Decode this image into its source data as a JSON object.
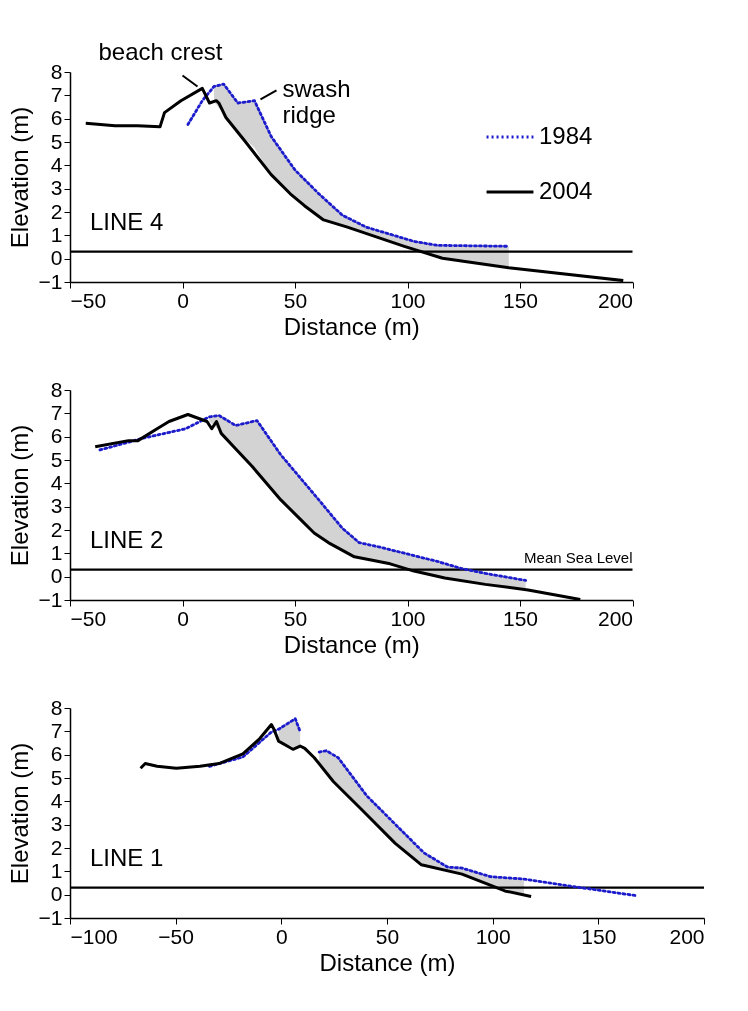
{
  "chart_data": [
    {
      "type": "line",
      "xlabel": "Distance (m)",
      "ylabel": "Elevation (m)",
      "xlim": [
        -50,
        200
      ],
      "ylim": [
        -1,
        8
      ],
      "xticks": [
        -50,
        0,
        50,
        100,
        150,
        200
      ],
      "yticks": [
        -1,
        0,
        1,
        2,
        3,
        4,
        5,
        6,
        7,
        8
      ],
      "legend": "top right",
      "annotations": [
        {
          "text": "beach crest",
          "x": 8,
          "y": 7.25
        },
        {
          "text": "swash ridge",
          "x": 32,
          "y": 6.7
        },
        "LINE 4"
      ],
      "ref_lines": [
        {
          "axis": "y",
          "value": 0.3,
          "color": "#000000"
        }
      ],
      "series": [
        {
          "name": "1984",
          "color": "#1c1ccc",
          "line_style": "dotted",
          "x": [
            2.4,
            8.8,
            14,
            18.3,
            24.6,
            32,
            39.4,
            50,
            60.6,
            71.1,
            81.7,
            102.9,
            113.4,
            145
          ],
          "values": [
            5.75,
            6.77,
            7.38,
            7.48,
            6.67,
            6.77,
            5.24,
            3.8,
            2.78,
            1.86,
            1.35,
            0.74,
            0.57,
            0.53
          ],
          "upper": [
            null,
            null,
            7.38,
            7.48,
            6.67,
            6.77,
            5.24,
            3.8,
            2.78,
            1.86,
            1.35,
            0.74,
            0.57,
            0.53
          ],
          "lower": [
            null,
            null,
            6.73,
            6.2,
            5.4,
            4.75,
            3.6,
            2.6,
            1.8,
            1.4,
            1.1,
            0.45,
            0.1,
            -0.39
          ]
        },
        {
          "name": "2004",
          "color": "#000000",
          "line_style": "solid",
          "x": [
            -43,
            -30,
            -20,
            -10,
            -8,
            -0.7,
            8.8,
            12,
            15,
            16.2,
            19.3,
            27.8,
            39.4,
            47.9,
            54.2,
            62.7,
            73.3,
            98.6,
            115.5,
            145,
            195.9
          ],
          "values": [
            5.8,
            5.7,
            5.7,
            5.65,
            6.26,
            6.77,
            7.3,
            6.67,
            6.77,
            6.67,
            6.05,
            5.03,
            3.6,
            2.78,
            2.27,
            1.66,
            1.35,
            0.53,
            0.02,
            -0.39,
            -0.94
          ]
        }
      ]
    },
    {
      "type": "line",
      "xlabel": "Distance (m)",
      "ylabel": "Elevation (m)",
      "xlim": [
        -50,
        200
      ],
      "ylim": [
        -1,
        8
      ],
      "xticks": [
        -50,
        0,
        50,
        100,
        150,
        200
      ],
      "yticks": [
        -1,
        0,
        1,
        2,
        3,
        4,
        5,
        6,
        7,
        8
      ],
      "annotations": [
        "LINE 2"
      ],
      "ref_lines": [
        {
          "axis": "y",
          "value": 0.3,
          "label": "Mean Sea Level",
          "color": "#000000"
        }
      ],
      "series": [
        {
          "name": "1984",
          "color": "#1c1ccc",
          "line_style": "dotted",
          "x": [
            -36.7,
            -17.7,
            1.4,
            11.9,
            16.2,
            23.6,
            33.1,
            43.7,
            60.6,
            71.1,
            78.5,
            88,
            113.4,
            124,
            134.6,
            152.5
          ],
          "values": [
            5.43,
            5.93,
            6.34,
            6.85,
            6.91,
            6.48,
            6.69,
            5.22,
            3.29,
            2.07,
            1.46,
            1.26,
            0.65,
            0.35,
            0.14,
            -0.16
          ],
          "upper": [
            null,
            null,
            null,
            6.85,
            6.91,
            6.48,
            6.69,
            5.22,
            3.29,
            2.07,
            1.46,
            1.26,
            0.65,
            0.35,
            0.14,
            -0.16
          ],
          "lower": [
            null,
            null,
            null,
            6.65,
            6.3,
            5.6,
            4.5,
            3.29,
            1.75,
            1.15,
            0.82,
            0.6,
            0.0,
            -0.17,
            -0.33,
            -0.57
          ]
        },
        {
          "name": "2004",
          "color": "#000000",
          "line_style": "solid",
          "x": [
            -38.8,
            -24,
            -19.8,
            -11.3,
            -6,
            2.4,
            10.9,
            13,
            15.1,
            17.2,
            31,
            43.7,
            53.2,
            58.5,
            64.8,
            76.4,
            92.3,
            102.9,
            116.6,
            134.6,
            153.6,
            176.8
          ],
          "values": [
            5.57,
            5.83,
            5.83,
            6.34,
            6.65,
            6.95,
            6.65,
            6.34,
            6.65,
            6.14,
            4.72,
            3.29,
            2.38,
            1.87,
            1.46,
            0.85,
            0.55,
            0.24,
            -0.06,
            -0.33,
            -0.57,
            -0.98
          ]
        }
      ]
    },
    {
      "type": "line",
      "xlabel": "Distance (m)",
      "ylabel": "Elevation (m)",
      "xlim": [
        -100,
        200
      ],
      "ylim": [
        -1,
        8
      ],
      "xticks": [
        -100,
        -50,
        0,
        50,
        100,
        150,
        200
      ],
      "yticks": [
        -1,
        0,
        1,
        2,
        3,
        4,
        5,
        6,
        7,
        8
      ],
      "annotations": [
        "LINE 1"
      ],
      "ref_lines": [
        {
          "axis": "y",
          "value": 0.3,
          "color": "#000000"
        }
      ],
      "series": [
        {
          "name": "1984",
          "color": "#1c1ccc",
          "line_style": "dotted",
          "x": [
            -34,
            -18.2,
            -4.7,
            -1.3,
            6.6,
            8.9,
            13,
            17.9,
            21.3,
            26.9,
            40.4,
            56.2,
            67.5,
            78.7,
            85.5,
            99,
            114.8,
            139.6,
            167.7
          ],
          "values": [
            5.5,
            5.9,
            6.97,
            7.09,
            7.54,
            6.99,
            null,
            6.11,
            6.17,
            5.87,
            4.24,
            2.81,
            1.79,
            1.18,
            1.14,
            0.77,
            0.67,
            0.33,
            -0.04
          ],
          "upper": [
            null,
            null,
            null,
            7.09,
            7.54,
            6.99,
            null,
            6.11,
            6.17,
            5.87,
            4.24,
            2.81,
            1.79,
            1.18,
            1.14,
            0.77,
            0.67,
            null,
            null
          ],
          "lower": [
            null,
            null,
            null,
            6.6,
            6.3,
            6.37,
            null,
            5.6,
            5.2,
            4.55,
            3.4,
            2.0,
            1.28,
            1.05,
            0.88,
            0.45,
            0.0,
            null,
            null
          ]
        },
        {
          "name": "2004",
          "color": "#000000",
          "line_style": "solid",
          "x": [
            -66.6,
            -64.4,
            -58.8,
            -49.7,
            -38.5,
            -29.5,
            -18.2,
            -10.3,
            -4.7,
            -3.5,
            -1.3,
            5.5,
            8.9,
            11.1,
            15.6,
            24.6,
            38.2,
            53.9,
            66.3,
            85.5,
            105.8,
            118.2
          ],
          "values": [
            5.42,
            5.62,
            5.5,
            5.42,
            5.5,
            5.62,
            6.03,
            6.68,
            7.29,
            7.09,
            6.58,
            6.23,
            6.37,
            6.27,
            5.87,
            4.85,
            3.63,
            2.2,
            1.28,
            0.88,
            0.16,
            -0.08
          ]
        }
      ]
    }
  ]
}
